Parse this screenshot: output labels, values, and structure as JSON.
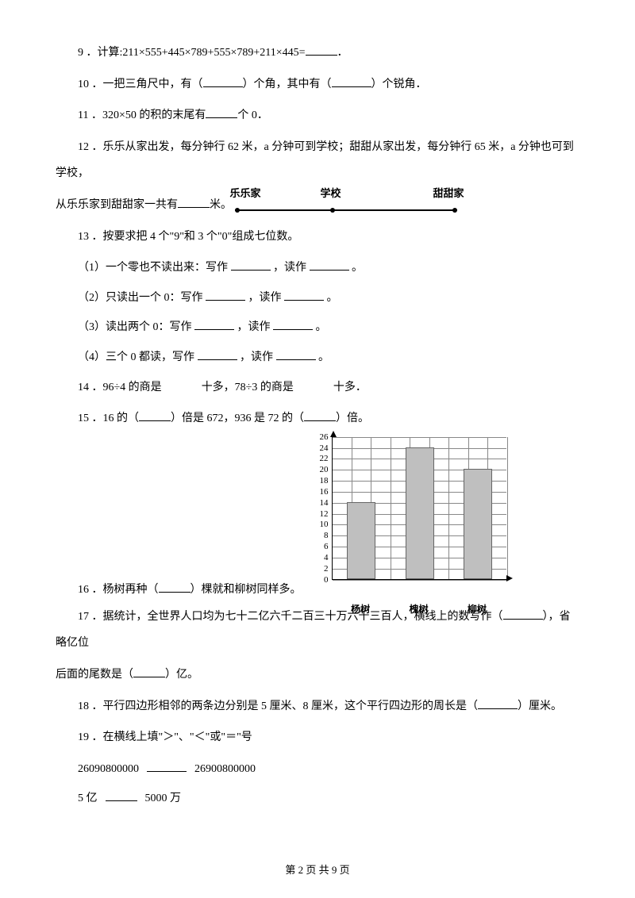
{
  "q9": "9 ．计算:211×555+445×789+555×789+211×445=",
  "q9_suffix": "．",
  "q10_a": "10 ．一把三角尺中，有（",
  "q10_b": "）个角，其中有（",
  "q10_c": "）个锐角．",
  "q11_a": "11 ．320×50 的积的末尾有",
  "q11_b": "个 0．",
  "q12_a": "12 ．乐乐从家出发，每分钟行 62 米，a 分钟可到学校；甜甜从家出发，每分钟行 65 米，a 分钟也可到学校，",
  "q12_b": "从乐乐家到甜甜家一共有",
  "q12_c": "米。",
  "diagram_labels": {
    "lele": "乐乐家",
    "school": "学校",
    "tiantian": "甜甜家"
  },
  "q13": "13 ．按要求把 4 个\"9\"和 3 个\"0\"组成七位数。",
  "q13_1a": "（1）一个零也不读出来：写作 ",
  "q13_1b": " ，读作 ",
  "q13_1c": " 。",
  "q13_2a": "（2）只读出一个 0：写作 ",
  "q13_3a": "（3）读出两个 0：写作 ",
  "q13_4a": "（4）三个 0 都读，写作 ",
  "q14_a": "14 ．96÷4 的商是",
  "q14_b": "十多，78÷3 的商是",
  "q14_c": "十多．",
  "q15_a": "15 ．16 的（",
  "q15_b": "）倍是 672，936 是 72 的（",
  "q15_c": "）倍。",
  "q16_a": "16 ．杨树再种（",
  "q16_b": "）棵就和柳树同样多。",
  "chart": {
    "ymax": 26,
    "ytick_step": 2,
    "categories": [
      "杨树",
      "槐树",
      "柳树"
    ],
    "values": [
      14,
      24,
      20
    ],
    "bar_color": "#bfbfbf",
    "grid_color": "#888888"
  },
  "q17_a": "17 ．据统计，全世界人口均为七十二亿六千二百三十万六千三百人，横线上的数写作（",
  "q17_b": "），省略亿位",
  "q17_c": "后面的尾数是（",
  "q17_d": "）亿。",
  "q18_a": "18 ．平行四边形相邻的两条边分别是 5 厘米、8 厘米，这个平行四边形的周长是（",
  "q18_b": "）厘米。",
  "q19": "19 ．在横线上填\"＞\"、\"＜\"或\"＝\"号",
  "q19_line1a": "26090800000",
  "q19_line1b": "26900800000",
  "q19_line2a": "5 亿",
  "q19_line2b": "5000 万",
  "footer": "第 2 页 共 9 页"
}
